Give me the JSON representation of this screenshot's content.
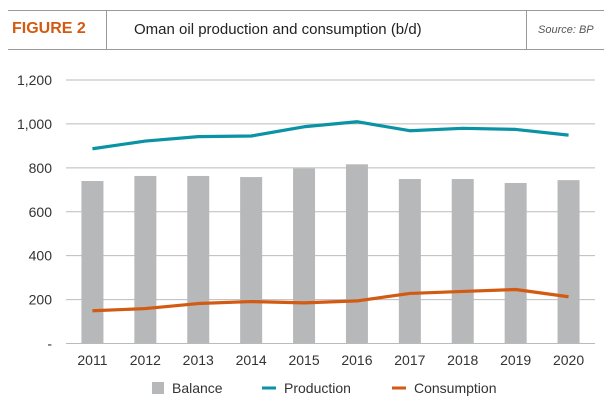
{
  "header": {
    "figure_label": "FIGURE 2",
    "title": "Oman oil production and consumption (b/d)",
    "source": "Source: BP"
  },
  "chart_data": {
    "type": "bar+line",
    "title": "Oman oil production and consumption (b/d)",
    "categories": [
      "2011",
      "2012",
      "2013",
      "2014",
      "2015",
      "2016",
      "2017",
      "2018",
      "2019",
      "2020"
    ],
    "series": [
      {
        "name": "Balance",
        "type": "bar",
        "color": "#b7b8ba",
        "values": [
          740,
          763,
          763,
          758,
          797,
          816,
          749,
          749,
          731,
          744
        ]
      },
      {
        "name": "Production",
        "type": "line",
        "color": "#0a93a5",
        "values": [
          887,
          922,
          942,
          945,
          987,
          1010,
          969,
          980,
          975,
          949
        ]
      },
      {
        "name": "Consumption",
        "type": "line",
        "color": "#d35a12",
        "values": [
          149,
          159,
          182,
          191,
          185,
          194,
          228,
          237,
          246,
          213
        ]
      }
    ],
    "yticks": [
      "-",
      "200",
      "400",
      "600",
      "800",
      "1,000",
      "1,200"
    ],
    "ylim": [
      0,
      1200
    ],
    "grid": true,
    "legend": "bottom"
  }
}
